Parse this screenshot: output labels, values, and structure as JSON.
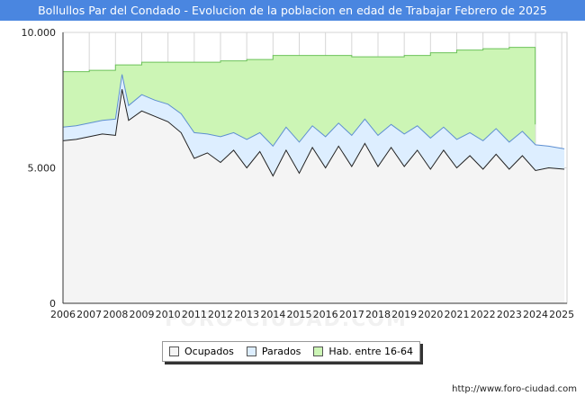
{
  "header": {
    "title": "Bollullos Par del Condado - Evolucion de la poblacion en edad de Trabajar Febrero de 2025"
  },
  "footer": {
    "source": "http://www.foro-ciudad.com"
  },
  "watermark": "FORO-CIUDAD.COM",
  "colors": {
    "title_bg": "#4a86e0",
    "hab": "#ccf5b5",
    "hab_line": "#6cc25a",
    "parados": "#ddeeff",
    "parados_line": "#5e8fd1",
    "ocupados": "#f4f4f4",
    "ocupados_line": "#222222"
  },
  "chart_data": {
    "type": "area",
    "title": "Bollullos Par del Condado - Evolucion de la poblacion en edad de Trabajar Febrero de 2025",
    "ylim": [
      0,
      10000
    ],
    "yticks": [
      0,
      5000,
      10000
    ],
    "ytick_labels": [
      "0",
      "5.000",
      "10.000"
    ],
    "xlim": [
      2006,
      2025.2
    ],
    "xticks": [
      "2006",
      "2007",
      "2008",
      "2009",
      "2010",
      "2011",
      "2012",
      "2013",
      "2014",
      "2015",
      "2016",
      "2017",
      "2018",
      "2019",
      "2020",
      "2021",
      "2022",
      "2023",
      "2024",
      "2025"
    ],
    "grid": true,
    "legend": [
      "Ocupados",
      "Parados",
      "Hab. entre 16-64"
    ],
    "series": [
      {
        "name": "Hab. entre 16-64",
        "x": [
          2006,
          2007,
          2008,
          2009,
          2010,
          2011,
          2012,
          2013,
          2014,
          2015,
          2016,
          2017,
          2018,
          2019,
          2020,
          2021,
          2022,
          2023,
          2023.99
        ],
        "values": [
          8550,
          8600,
          8800,
          8900,
          8900,
          8900,
          8950,
          9000,
          9150,
          9150,
          9150,
          9100,
          9100,
          9150,
          9250,
          9350,
          9400,
          9450,
          9450
        ]
      },
      {
        "name": "Parados",
        "x": [
          2006,
          2006.5,
          2007,
          2007.5,
          2008,
          2008.25,
          2008.5,
          2009,
          2009.5,
          2010,
          2010.5,
          2011,
          2011.5,
          2012,
          2012.5,
          2013,
          2013.5,
          2014,
          2014.5,
          2015,
          2015.5,
          2016,
          2016.5,
          2017,
          2017.5,
          2018,
          2018.5,
          2019,
          2019.5,
          2020,
          2020.5,
          2021,
          2021.5,
          2022,
          2022.5,
          2023,
          2023.5,
          2024,
          2024.5,
          2025.1
        ],
        "values": [
          6500,
          6550,
          6650,
          6750,
          6800,
          8450,
          7300,
          7700,
          7500,
          7350,
          7000,
          6300,
          6250,
          6150,
          6300,
          6050,
          6300,
          5800,
          6500,
          5950,
          6550,
          6150,
          6650,
          6200,
          6800,
          6200,
          6600,
          6250,
          6550,
          6100,
          6500,
          6050,
          6300,
          6000,
          6450,
          5950,
          6350,
          5850,
          5800,
          5700
        ]
      },
      {
        "name": "Ocupados",
        "x": [
          2006,
          2006.5,
          2007,
          2007.5,
          2008,
          2008.25,
          2008.5,
          2009,
          2009.5,
          2010,
          2010.5,
          2011,
          2011.5,
          2012,
          2012.5,
          2013,
          2013.5,
          2014,
          2014.5,
          2015,
          2015.5,
          2016,
          2016.5,
          2017,
          2017.5,
          2018,
          2018.5,
          2019,
          2019.5,
          2020,
          2020.5,
          2021,
          2021.5,
          2022,
          2022.5,
          2023,
          2023.5,
          2024,
          2024.5,
          2025.1
        ],
        "values": [
          6000,
          6050,
          6150,
          6250,
          6200,
          7900,
          6750,
          7100,
          6900,
          6700,
          6300,
          5350,
          5550,
          5200,
          5650,
          5000,
          5600,
          4700,
          5650,
          4800,
          5750,
          5000,
          5800,
          5050,
          5900,
          5050,
          5750,
          5050,
          5650,
          4950,
          5650,
          5000,
          5450,
          4950,
          5500,
          4950,
          5450,
          4900,
          5000,
          4950
        ]
      }
    ]
  },
  "legend": {
    "ocupados": "Ocupados",
    "parados": "Parados",
    "hab": "Hab. entre 16-64"
  }
}
